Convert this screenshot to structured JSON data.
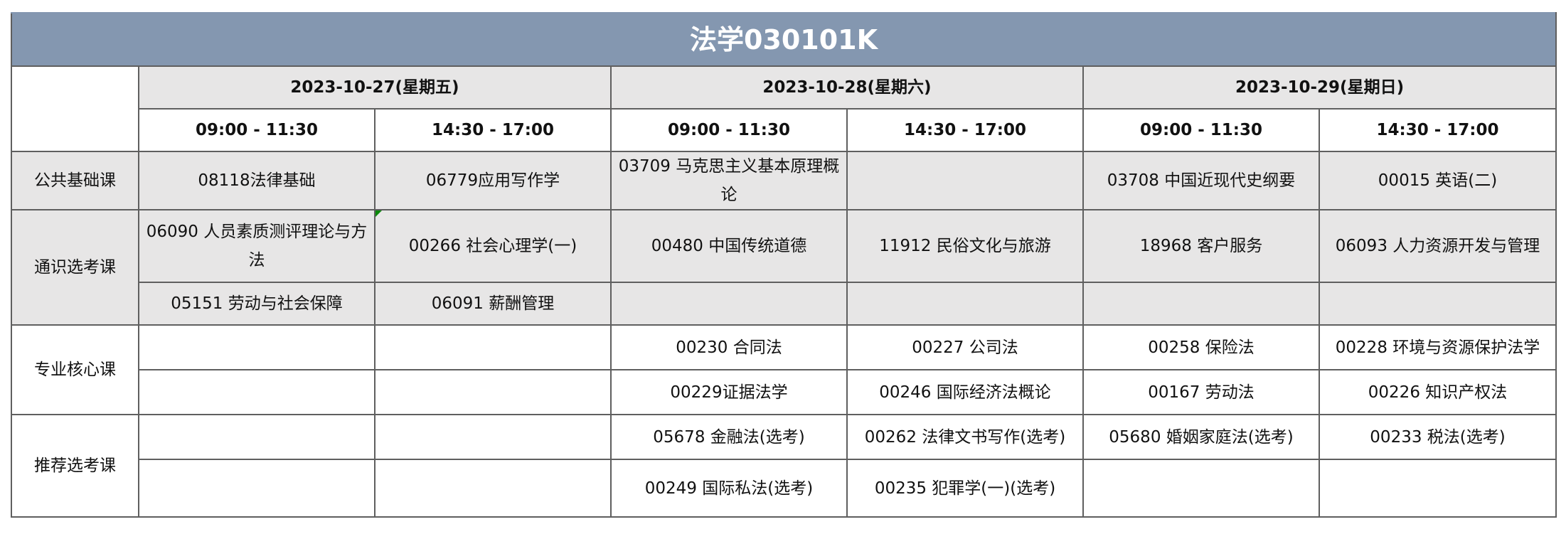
{
  "title": "法学030101K",
  "dates": [
    "2023-10-27(星期五)",
    "2023-10-28(星期六)",
    "2023-10-29(星期日)"
  ],
  "times": [
    "09:00 - 11:30",
    "14:30 - 17:00",
    "09:00 - 11:30",
    "14:30 - 17:00",
    "09:00 - 11:30",
    "14:30 - 17:00"
  ],
  "colors": {
    "title_bg": "#8497b0",
    "gray_bg": "#e7e6e6",
    "comment_marker": "#0a8a0a"
  },
  "categories": [
    {
      "label": "公共基础课",
      "rows": [
        [
          "08118法律基础",
          "06779应用写作学",
          "03709 马克思主义基本原理概论",
          "",
          "03708 中国近现代史纲要",
          "00015 英语(二)"
        ]
      ]
    },
    {
      "label": "通识选考课",
      "rows": [
        [
          "06090 人员素质测评理论与方法",
          "00266 社会心理学(一)",
          "00480 中国传统道德",
          "11912 民俗文化与旅游",
          "18968 客户服务",
          "06093 人力资源开发与管理"
        ],
        [
          "05151 劳动与社会保障",
          "06091 薪酬管理",
          "",
          "",
          "",
          ""
        ]
      ]
    },
    {
      "label": "专业核心课",
      "rows": [
        [
          "",
          "",
          "00230 合同法",
          "00227 公司法",
          "00258 保险法",
          "00228 环境与资源保护法学"
        ],
        [
          "",
          "",
          "00229证据法学",
          "00246 国际经济法概论",
          "00167 劳动法",
          "00226 知识产权法"
        ]
      ]
    },
    {
      "label": "推荐选考课",
      "rows": [
        [
          "",
          "",
          "05678 金融法(选考)",
          "00262 法律文书写作(选考)",
          "05680 婚姻家庭法(选考)",
          "00233 税法(选考)"
        ],
        [
          "",
          "",
          "00249 国际私法(选考)",
          "00235 犯罪学(一)(选考)",
          "",
          ""
        ]
      ]
    }
  ]
}
